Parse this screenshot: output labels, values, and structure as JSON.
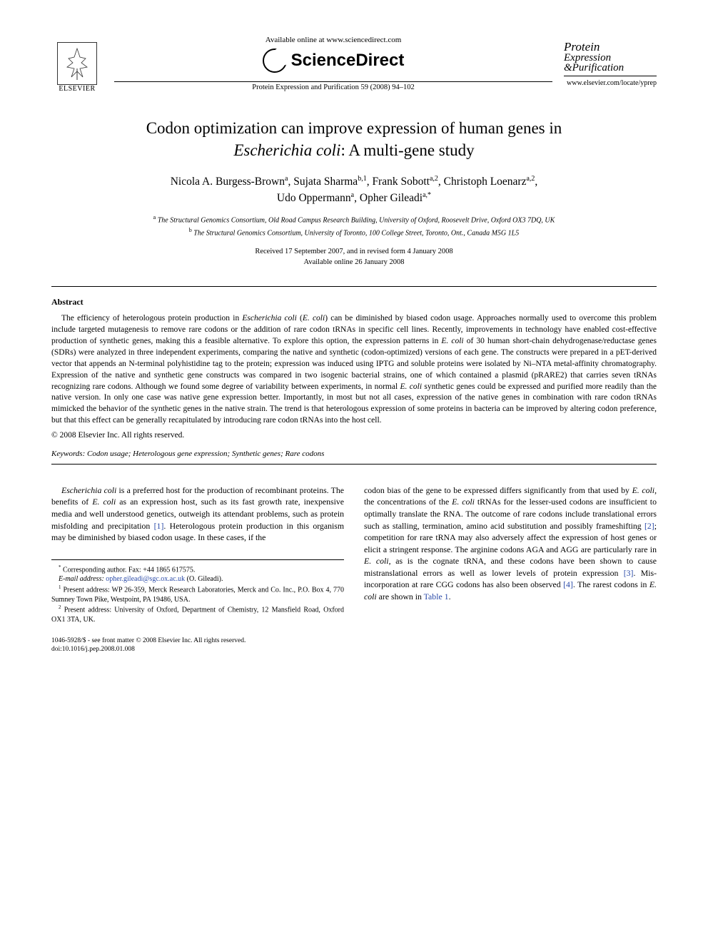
{
  "header": {
    "elsevier_label": "ELSEVIER",
    "available_online": "Available online at www.sciencedirect.com",
    "sciencedirect": "ScienceDirect",
    "journal_ref": "Protein Expression and Purification 59 (2008) 94–102",
    "journal_name_line1": "Protein",
    "journal_name_line2": "Expression",
    "journal_name_line3": "&Purification",
    "journal_url": "www.elsevier.com/locate/yprep"
  },
  "title": {
    "line1": "Codon optimization can improve expression of human genes in",
    "line2_ital": "Escherichia coli",
    "line2_rest": ": A multi-gene study"
  },
  "authors": {
    "a1": "Nicola A. Burgess-Brown",
    "a1_sup": "a",
    "a2": "Sujata Sharma",
    "a2_sup": "b,1",
    "a3": "Frank Sobott",
    "a3_sup": "a,2",
    "a4": "Christoph Loenarz",
    "a4_sup": "a,2",
    "a5": "Udo Oppermann",
    "a5_sup": "a",
    "a6": "Opher Gileadi",
    "a6_sup": "a,*"
  },
  "affils": {
    "a": "The Structural Genomics Consortium, Old Road Campus Research Building, University of Oxford, Roosevelt Drive, Oxford OX3 7DQ, UK",
    "b": "The Structural Genomics Consortium, University of Toronto, 100 College Street, Toronto, Ont., Canada M5G 1L5"
  },
  "dates": {
    "received": "Received 17 September 2007, and in revised form 4 January 2008",
    "available": "Available online 26 January 2008"
  },
  "abstract": {
    "heading": "Abstract",
    "body_parts": [
      {
        "t": "The efficiency of heterologous protein production in "
      },
      {
        "t": "Escherichia coli",
        "ital": true
      },
      {
        "t": " ("
      },
      {
        "t": "E. coli",
        "ital": true
      },
      {
        "t": ") can be diminished by biased codon usage. Approaches normally used to overcome this problem include targeted mutagenesis to remove rare codons or the addition of rare codon tRNAs in specific cell lines. Recently, improvements in technology have enabled cost-effective production of synthetic genes, making this a feasible alternative. To explore this option, the expression patterns in "
      },
      {
        "t": "E. coli",
        "ital": true
      },
      {
        "t": " of 30 human short-chain dehydrogenase/reductase genes (SDRs) were analyzed in three independent experiments, comparing the native and synthetic (codon-optimized) versions of each gene. The constructs were prepared in a pET-derived vector that appends an N-terminal polyhistidine tag to the protein; expression was induced using IPTG and soluble proteins were isolated by Ni–NTA metal-affinity chromatography. Expression of the native and synthetic gene constructs was compared in two isogenic bacterial strains, one of which contained a plasmid (pRARE2) that carries seven tRNAs recognizing rare codons. Although we found some degree of variability between experiments, in normal "
      },
      {
        "t": "E. coli",
        "ital": true
      },
      {
        "t": " synthetic genes could be expressed and purified more readily than the native version. In only one case was native gene expression better. Importantly, in most but not all cases, expression of the native genes in combination with rare codon tRNAs mimicked the behavior of the synthetic genes in the native strain. The trend is that heterologous expression of some proteins in bacteria can be improved by altering codon preference, but that this effect can be generally recapitulated by introducing rare codon tRNAs into the host cell."
      }
    ],
    "copyright": "© 2008 Elsevier Inc. All rights reserved."
  },
  "keywords": {
    "label": "Keywords:",
    "value": "Codon usage; Heterologous gene expression; Synthetic genes; Rare codons"
  },
  "body": {
    "col1_parts": [
      {
        "t": "Escherichia coli",
        "ital": true
      },
      {
        "t": " is a preferred host for the production of recombinant proteins. The benefits of "
      },
      {
        "t": "E. coli",
        "ital": true
      },
      {
        "t": " as an expression host, such as its fast growth rate, inexpensive media and well understood genetics, outweigh its attendant problems, such as protein misfolding and precipitation "
      },
      {
        "t": "[1]",
        "ref": true
      },
      {
        "t": ". Heterologous protein production in this organism may be diminished by biased codon usage. In these cases, if the"
      }
    ],
    "col2_parts": [
      {
        "t": "codon bias of the gene to be expressed differs significantly from that used by "
      },
      {
        "t": "E. coli",
        "ital": true
      },
      {
        "t": ", the concentrations of the "
      },
      {
        "t": "E. coli",
        "ital": true
      },
      {
        "t": " tRNAs for the lesser-used codons are insufficient to optimally translate the RNA. The outcome of rare codons include translational errors such as stalling, termination, amino acid substitution and possibly frameshifting "
      },
      {
        "t": "[2]",
        "ref": true
      },
      {
        "t": "; competition for rare tRNA may also adversely affect the expression of host genes or elicit a stringent response. The arginine codons AGA and AGG are particularly rare in "
      },
      {
        "t": "E. coli",
        "ital": true
      },
      {
        "t": ", as is the cognate tRNA, and these codons have been shown to cause mistranslational errors as well as lower levels of protein expression "
      },
      {
        "t": "[3]",
        "ref": true
      },
      {
        "t": ". Mis-incorporation at rare CGG codons has also been observed "
      },
      {
        "t": "[4]",
        "ref": true
      },
      {
        "t": ". The rarest codons in "
      },
      {
        "t": "E. coli",
        "ital": true
      },
      {
        "t": " are shown in "
      },
      {
        "t": "Table 1",
        "ref": true
      },
      {
        "t": "."
      }
    ]
  },
  "footnotes": {
    "corr_label": "Corresponding author. Fax: +44 1865 617575.",
    "email_label": "E-mail address:",
    "email": "opher.gileadi@sgc.ox.ac.uk",
    "email_tail": " (O. Gileadi).",
    "fn1": "Present address: WP 26-359, Merck Research Laboratories, Merck and Co. Inc., P.O. Box 4, 770 Sumney Town Pike, Westpoint, PA 19486, USA.",
    "fn2": "Present address: University of Oxford, Department of Chemistry, 12 Mansfield Road, Oxford OX1 3TA, UK."
  },
  "bottom": {
    "front_matter": "1046-5928/$ - see front matter © 2008 Elsevier Inc. All rights reserved.",
    "doi": "doi:10.1016/j.pep.2008.01.008"
  },
  "colors": {
    "text": "#000000",
    "link": "#2a4aa8",
    "background": "#ffffff"
  },
  "typography": {
    "title_fontsize": 23,
    "authors_fontsize": 15.5,
    "abstract_fontsize": 11.5,
    "body_fontsize": 11.8,
    "footnote_fontsize": 10
  }
}
